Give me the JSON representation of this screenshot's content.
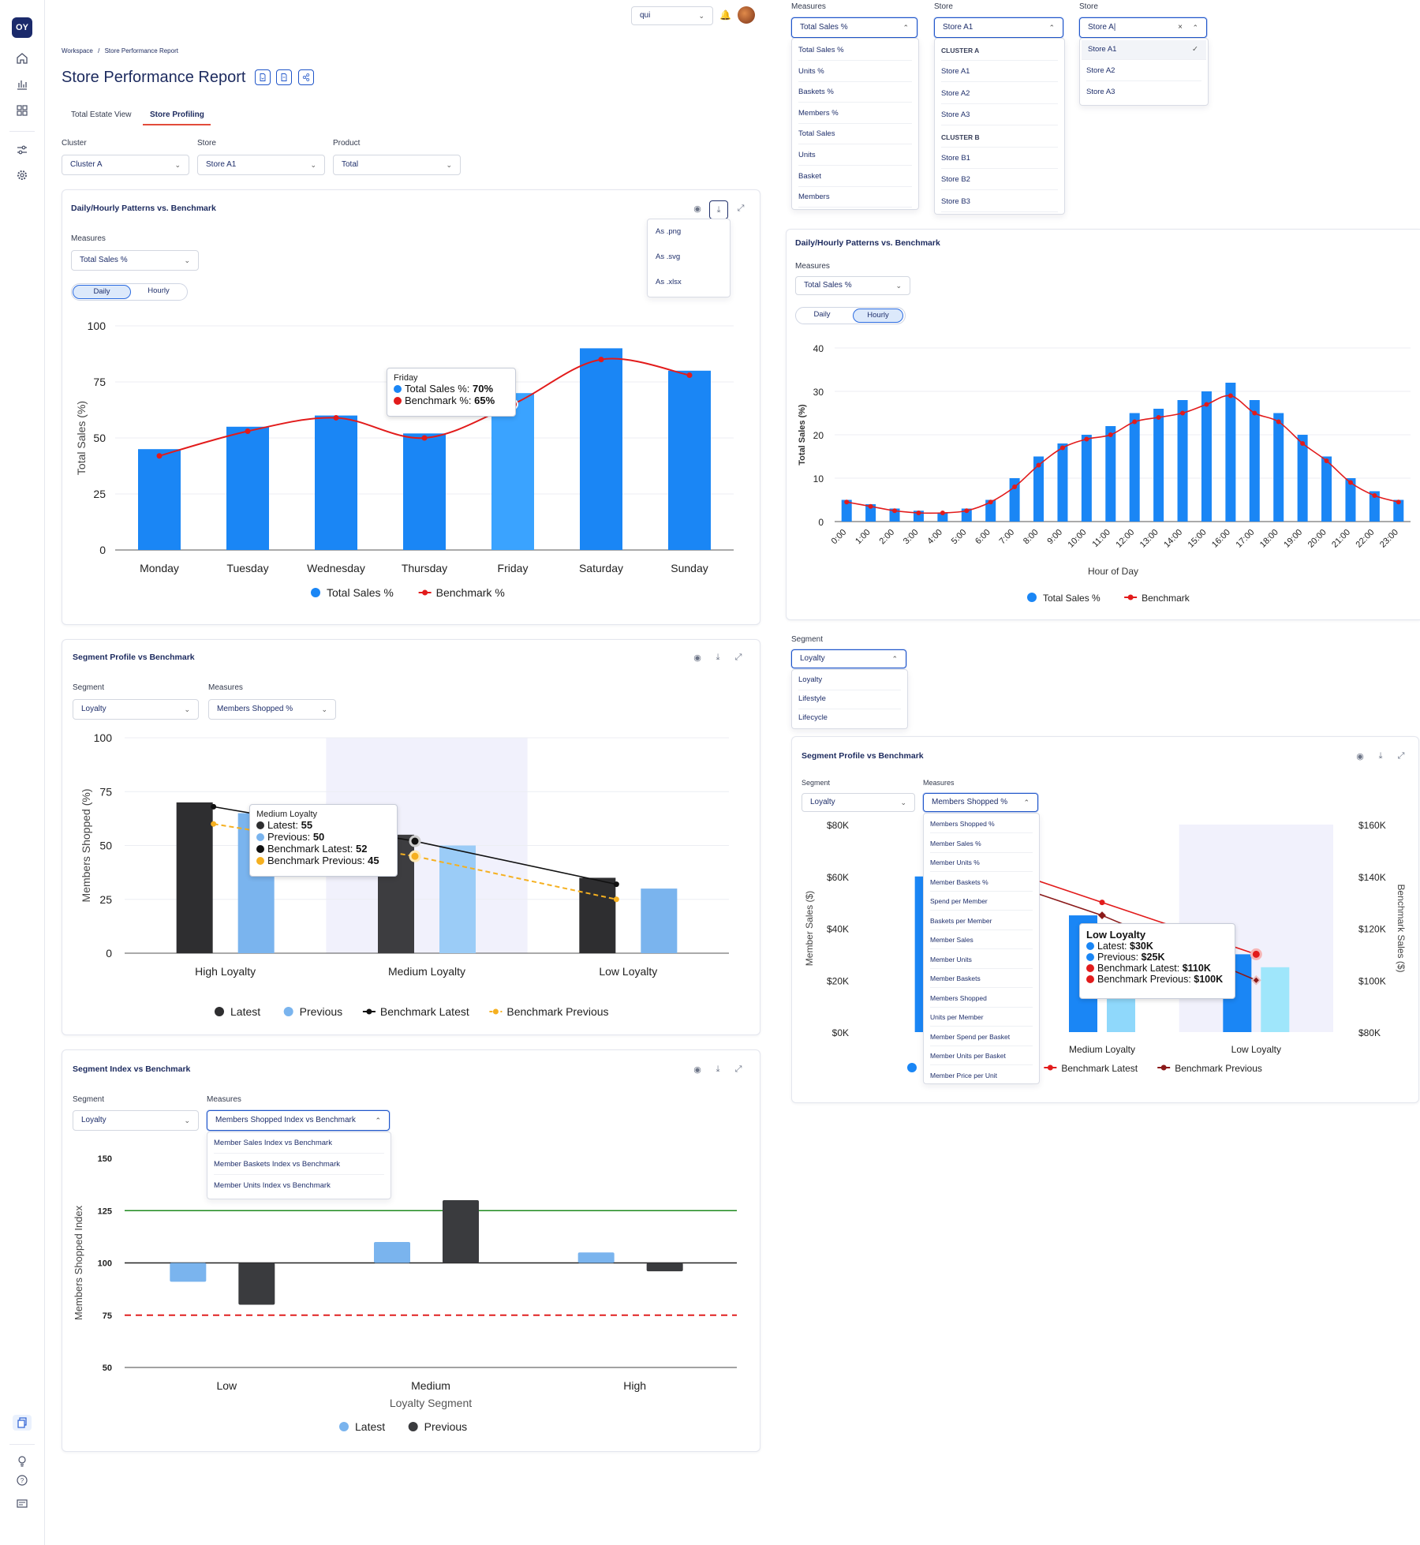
{
  "header": {
    "user_select": "qui",
    "breadcrumb": [
      "Workspace",
      "Store Performance Report"
    ],
    "breadcrumb_sep": "/",
    "page_title": "Store Performance Report"
  },
  "tabs": [
    {
      "label": "Total Estate View",
      "active": false
    },
    {
      "label": "Store Profiling",
      "active": true
    }
  ],
  "filters": {
    "cluster": {
      "label": "Cluster",
      "value": "Cluster A"
    },
    "store": {
      "label": "Store",
      "value": "Store A1"
    },
    "product": {
      "label": "Product",
      "value": "Total"
    }
  },
  "download_menu": [
    "As .png",
    "As .svg",
    "As .xlsx"
  ],
  "top_dropdowns": {
    "measures": {
      "label": "Measures",
      "value": "Total Sales %",
      "options": [
        "Total Sales %",
        "Units %",
        "Baskets %",
        "Members %",
        "Total Sales",
        "Units",
        "Basket",
        "Members"
      ]
    },
    "store": {
      "label": "Store",
      "value": "Store A1",
      "options": [
        {
          "text": "CLUSTER A",
          "group": true
        },
        {
          "text": "Store A1"
        },
        {
          "text": "Store A2"
        },
        {
          "text": "Store A3"
        },
        {
          "text": "CLUSTER B",
          "group": true
        },
        {
          "text": "Store B1"
        },
        {
          "text": "Store B2"
        },
        {
          "text": "Store B3"
        }
      ]
    },
    "store_search": {
      "label": "Store",
      "value": "Store A|",
      "options": [
        "Store A1",
        "Store A2",
        "Store A3"
      ],
      "selected": "Store A1"
    }
  },
  "daily_card": {
    "title": "Daily/Hourly Patterns vs. Benchmark",
    "measures_label": "Measures",
    "measures_value": "Total Sales %",
    "toggle": [
      "Daily",
      "Hourly"
    ],
    "tooltip": {
      "day": "Friday",
      "line1_label": "Total Sales %: ",
      "line1_value": "70%",
      "line2_label": "Benchmark %: ",
      "line2_value": "65%"
    }
  },
  "hourly_card": {
    "title": "Daily/Hourly Patterns vs. Benchmark",
    "measures_label": "Measures",
    "measures_value": "Total Sales %",
    "toggle": [
      "Daily",
      "Hourly"
    ]
  },
  "segment_card": {
    "title": "Segment Profile vs Benchmark",
    "segment_label": "Segment",
    "segment_value": "Loyalty",
    "measures_label": "Measures",
    "measures_value": "Members Shopped %",
    "tooltip": {
      "title": "Medium Loyalty",
      "rows": [
        "Latest: ",
        "Previous: ",
        "Benchmark Latest: ",
        "Benchmark Previous: "
      ],
      "values": [
        "55",
        "50",
        "52",
        "45"
      ]
    }
  },
  "segment_dropdown": {
    "label": "Segment",
    "value": "Loyalty",
    "options": [
      "Loyalty",
      "Lifestyle",
      "Lifecycle"
    ]
  },
  "segment_card_right": {
    "title": "Segment Profile vs Benchmark",
    "segment_label": "Segment",
    "segment_value": "Loyalty",
    "measures_label": "Measures",
    "measures_value": "Members Shopped %",
    "measures_options": [
      "Members Shopped %",
      "Member Sales %",
      "Member Units %",
      "Member Baskets %",
      "Spend per Member",
      "Baskets per Member",
      "Member Sales",
      "Member Units",
      "Member Baskets",
      "Members Shopped",
      "Units per Member",
      "Member Spend per Basket",
      "Member Units per Basket",
      "Member Price per Unit"
    ],
    "tooltip": {
      "title": "Low Loyalty",
      "rows": [
        "Latest: ",
        "Previous: ",
        "Benchmark Latest: ",
        "Benchmark Previous: "
      ],
      "values": [
        "$30K",
        "$25K",
        "$110K",
        "$100K"
      ]
    },
    "x_visible": [
      "Hig",
      "Medium Loyalty",
      "Low Loyalty"
    ],
    "legend_visible": [
      "Latest",
      "Previous",
      "Benchmark Latest",
      "Benchmark Previous"
    ]
  },
  "index_card": {
    "title": "Segment Index vs Benchmark",
    "segment_label": "Segment",
    "segment_value": "Loyalty",
    "measures_label": "Measures",
    "measures_value": "Members Shopped Index vs Benchmark",
    "measures_options": [
      "Member Sales Index vs Benchmark",
      "Member Baskets Index vs Benchmark",
      "Member Units Index vs Benchmark"
    ]
  },
  "chart_data": [
    {
      "type": "bar",
      "categories": [
        "Monday",
        "Tuesday",
        "Wednesday",
        "Thursday",
        "Friday",
        "Saturday",
        "Sunday"
      ],
      "series": [
        {
          "name": "Total Sales %",
          "values": [
            45,
            55,
            60,
            52,
            70,
            90,
            80
          ],
          "color": "#1a86f5"
        },
        {
          "name": "Benchmark %",
          "values": [
            42,
            53,
            59,
            50,
            65,
            85,
            78
          ],
          "color": "#e21b1b",
          "type": "line"
        }
      ],
      "ylabel": "Total Sales (%)",
      "ylim": [
        0,
        100
      ],
      "yticks": [
        0,
        25,
        50,
        75,
        100
      ],
      "legend_labels": [
        "Total Sales %",
        "Benchmark %"
      ],
      "highlight": "Friday",
      "highlight_color": "#3aa3ff"
    },
    {
      "type": "bar",
      "categories": [
        "0:00",
        "1:00",
        "2:00",
        "3:00",
        "4:00",
        "5:00",
        "6:00",
        "7:00",
        "8:00",
        "9:00",
        "10:00",
        "11:00",
        "12:00",
        "13:00",
        "14:00",
        "15:00",
        "16:00",
        "17:00",
        "18:00",
        "19:00",
        "20:00",
        "21:00",
        "22:00",
        "23:00"
      ],
      "series": [
        {
          "name": "Total Sales %",
          "values": [
            5,
            4,
            3,
            2.5,
            2,
            3,
            5,
            10,
            15,
            18,
            20,
            22,
            25,
            26,
            28,
            30,
            32,
            28,
            25,
            20,
            15,
            10,
            7,
            5
          ],
          "color": "#1a86f5"
        },
        {
          "name": "Benchmark",
          "values": [
            4.5,
            3.5,
            2.5,
            2,
            2,
            2.5,
            4.5,
            8,
            13,
            17,
            19,
            20,
            23,
            24,
            25,
            27,
            29,
            25,
            23,
            18,
            14,
            9,
            6,
            4.5
          ],
          "color": "#e21b1b",
          "type": "line"
        }
      ],
      "xlabel": "Hour of Day",
      "ylabel": "Total Sales (%)",
      "ylim": [
        0,
        40
      ],
      "yticks": [
        0,
        10,
        20,
        30,
        40
      ],
      "legend_labels": [
        "Total Sales %",
        "Benchmark"
      ]
    },
    {
      "type": "bar",
      "categories": [
        "High Loyalty",
        "Medium Loyalty",
        "Low Loyalty"
      ],
      "series": [
        {
          "name": "Latest",
          "values": [
            70,
            55,
            35
          ],
          "color": "#2e2e30"
        },
        {
          "name": "Previous",
          "values": [
            65,
            50,
            30
          ],
          "color": "#7ab4ee"
        },
        {
          "name": "Benchmark Latest",
          "values": [
            68,
            52,
            32
          ],
          "color": "#111111",
          "type": "line"
        },
        {
          "name": "Benchmark Previous",
          "values": [
            60,
            45,
            25
          ],
          "color": "#f5b020",
          "type": "line"
        }
      ],
      "ylabel": "Members Shopped (%)",
      "ylim": [
        0,
        100
      ],
      "yticks": [
        0,
        25,
        50,
        75,
        100
      ],
      "highlight": "Medium Loyalty"
    },
    {
      "type": "bar",
      "categories": [
        "High Loyalty",
        "Medium Loyalty",
        "Low Loyalty"
      ],
      "series": [
        {
          "name": "Latest",
          "values": [
            60,
            45,
            30
          ],
          "color": "#1a86f5"
        },
        {
          "name": "Previous",
          "values": [
            55,
            40,
            25
          ],
          "color": "#8fd8fb"
        },
        {
          "name": "Benchmark Latest",
          "values": [
            150,
            130,
            110
          ],
          "color": "#e21b1b",
          "type": "line",
          "axis": "right"
        },
        {
          "name": "Benchmark Previous",
          "values": [
            145,
            125,
            100
          ],
          "color": "#8b1a1a",
          "type": "line",
          "axis": "right"
        }
      ],
      "ylabel": "Member Sales ($)",
      "y2label": "Benchmark Sales ($)",
      "yticks_labels": [
        "$0K",
        "$20K",
        "$40K",
        "$60K",
        "$80K"
      ],
      "y2ticks_labels": [
        "$80K",
        "$100K",
        "$120K",
        "$140K",
        "$160K"
      ],
      "ylim": [
        0,
        80
      ],
      "y2lim": [
        80,
        160
      ],
      "highlight": "Low Loyalty"
    },
    {
      "type": "bar",
      "categories": [
        "Low",
        "Medium",
        "High"
      ],
      "series": [
        {
          "name": "Latest",
          "values": [
            91,
            110,
            105
          ],
          "color": "#7ab4ee"
        },
        {
          "name": "Previous",
          "values": [
            80,
            130,
            96
          ],
          "color": "#3a3b3e"
        }
      ],
      "reference_lines": [
        {
          "value": 125,
          "color": "#1e8a1e",
          "style": "solid"
        },
        {
          "value": 100,
          "color": "#222222",
          "style": "solid"
        },
        {
          "value": 75,
          "color": "#e02020",
          "style": "dashed"
        }
      ],
      "xlabel": "Loyalty Segment",
      "ylabel": "Members Shopped Index",
      "ylim": [
        50,
        150
      ],
      "yticks": [
        50,
        75,
        100,
        125,
        150
      ]
    }
  ]
}
